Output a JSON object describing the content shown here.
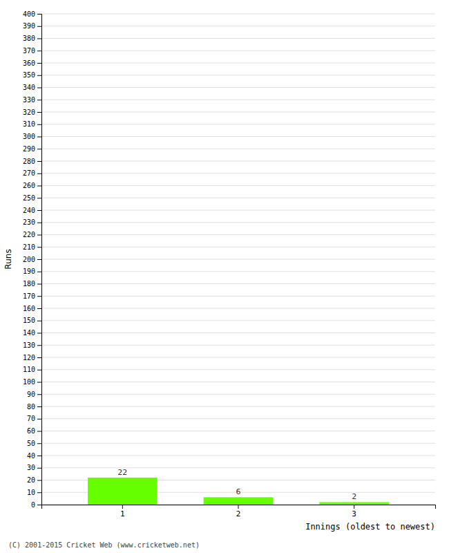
{
  "chart_data": {
    "type": "bar",
    "categories": [
      "1",
      "2",
      "3"
    ],
    "values": [
      22,
      6,
      2
    ],
    "color": "#66ff00",
    "ylabel": "Runs",
    "xlabel": "Innings (oldest to newest)",
    "ylim": [
      0,
      400
    ],
    "yticks": [
      0,
      10,
      20,
      30,
      40,
      50,
      60,
      70,
      80,
      90,
      100,
      110,
      120,
      130,
      140,
      150,
      160,
      170,
      180,
      190,
      200,
      210,
      220,
      230,
      240,
      250,
      260,
      270,
      280,
      290,
      300,
      310,
      320,
      330,
      340,
      350,
      360,
      370,
      380,
      390,
      400
    ],
    "grid": true,
    "data_labels": true,
    "annotations": [
      "(C) 2001-2015 Cricket Web (www.cricketweb.net)"
    ]
  }
}
